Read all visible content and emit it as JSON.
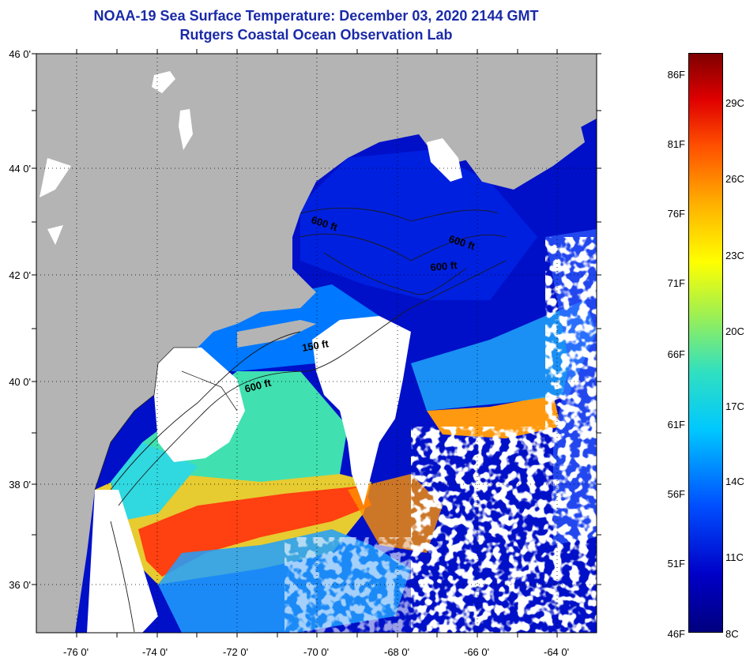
{
  "title": {
    "line1": "NOAA-19 Sea Surface Temperature:  December 03, 2020 2144 GMT",
    "line2": "Rutgers Coastal Ocean Observation Lab"
  },
  "map": {
    "lat_labels": [
      "46 0'",
      "44 0'",
      "42 0'",
      "40 0'",
      "38 0'",
      "36 0'"
    ],
    "lon_labels": [
      "-76 0'",
      "-74 0'",
      "-72 0'",
      "-70 0'",
      "-68 0'",
      "-66 0'",
      "-64 0'"
    ],
    "contour_labels": [
      "600 ft",
      "600 ft",
      "600 ft",
      "150 ft",
      "600 ft"
    ],
    "colors": {
      "land": "#b4b4b4",
      "cloud": "#ffffff",
      "cold_water": "#0a14d2",
      "gulf_stream": "#ff4010"
    }
  },
  "colorbar": {
    "fahrenheit": [
      "86F",
      "81F",
      "76F",
      "71F",
      "66F",
      "61F",
      "56F",
      "51F",
      "46F"
    ],
    "celsius": [
      "29C",
      "26C",
      "23C",
      "20C",
      "17C",
      "14C",
      "11C",
      "8C"
    ]
  }
}
